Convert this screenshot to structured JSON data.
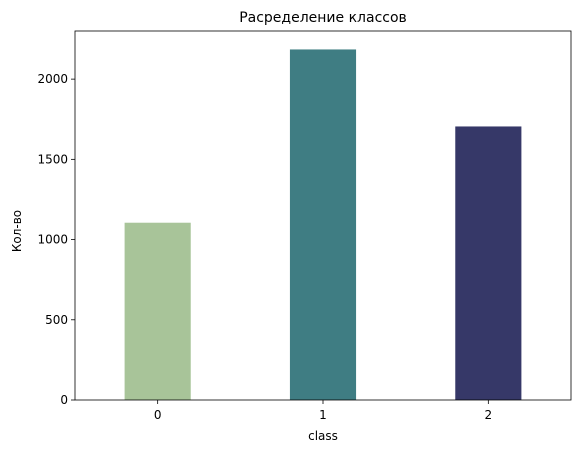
{
  "chart_data": {
    "type": "bar",
    "title": "Расределение классов",
    "xlabel": "class",
    "ylabel": "Кол-во",
    "categories": [
      "0",
      "1",
      "2"
    ],
    "values": [
      1105,
      2185,
      1705
    ],
    "colors": [
      "#a8c499",
      "#3f7d83",
      "#363868"
    ],
    "ylim": [
      0,
      2300
    ],
    "yticks": [
      0,
      500,
      1000,
      1500,
      2000
    ],
    "grid": false,
    "legend": "none"
  }
}
